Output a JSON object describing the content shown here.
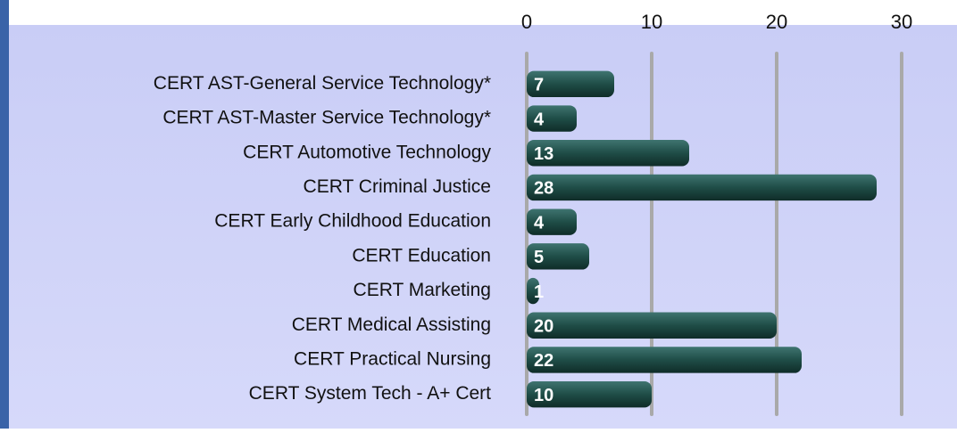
{
  "chart_data": {
    "type": "bar",
    "orientation": "horizontal",
    "categories": [
      "CERT AST-General Service Technology*",
      "CERT AST-Master Service Technology*",
      "CERT Automotive Technology",
      "CERT Criminal Justice",
      "CERT Early Childhood Education",
      "CERT Education",
      "CERT Marketing",
      "CERT Medical Assisting",
      "CERT Practical Nursing",
      "CERT System Tech - A+ Cert"
    ],
    "values": [
      7,
      4,
      13,
      28,
      4,
      5,
      1,
      20,
      22,
      10
    ],
    "color": "#1f4d47",
    "xlim": [
      0,
      30
    ],
    "xticks": [
      0,
      10,
      20,
      30
    ],
    "grid": true
  }
}
